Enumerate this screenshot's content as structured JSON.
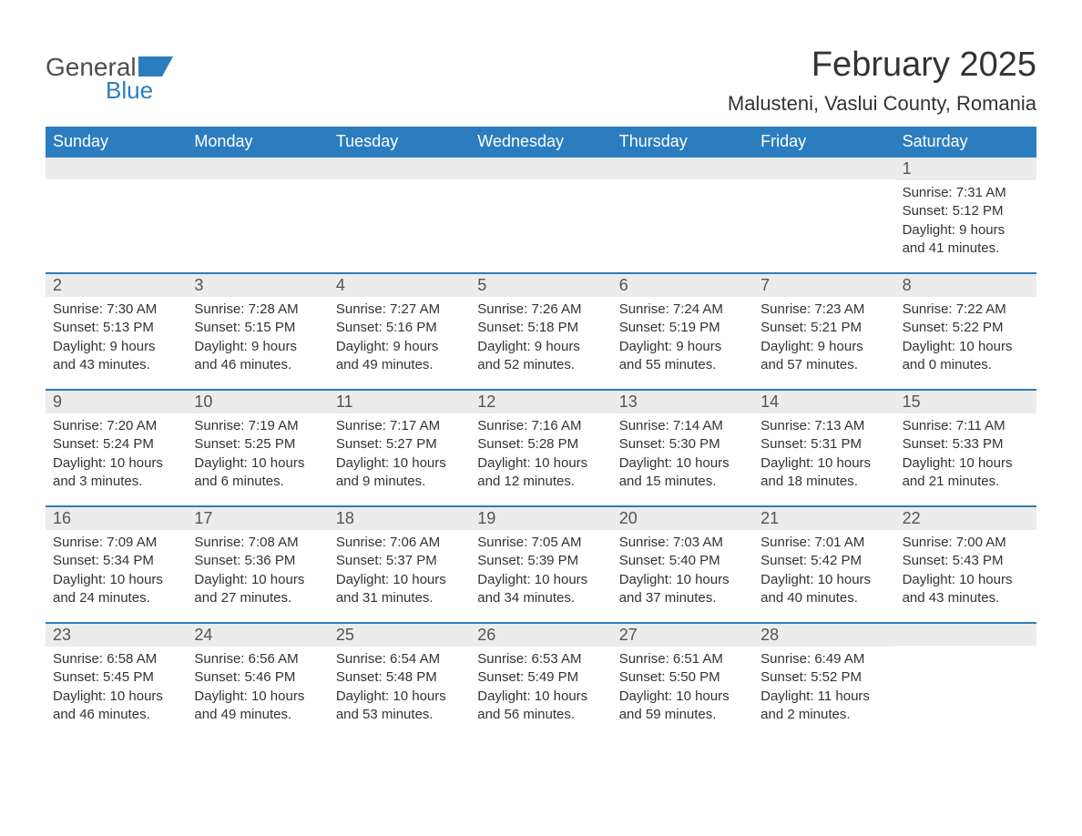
{
  "logo": {
    "text_gray": "General",
    "text_blue": "Blue",
    "icon_color": "#2b7dbf"
  },
  "header": {
    "month_title": "February 2025",
    "location": "Malusteni, Vaslui County, Romania"
  },
  "colors": {
    "header_bg": "#2b7dbf",
    "header_text": "#ffffff",
    "daynum_bg": "#ececec",
    "week_border": "#2b7dbf",
    "body_text": "#333333",
    "logo_gray": "#4d4d4d"
  },
  "weekdays": [
    "Sunday",
    "Monday",
    "Tuesday",
    "Wednesday",
    "Thursday",
    "Friday",
    "Saturday"
  ],
  "weeks": [
    [
      {
        "day": "",
        "sunrise": "",
        "sunset": "",
        "daylight": ""
      },
      {
        "day": "",
        "sunrise": "",
        "sunset": "",
        "daylight": ""
      },
      {
        "day": "",
        "sunrise": "",
        "sunset": "",
        "daylight": ""
      },
      {
        "day": "",
        "sunrise": "",
        "sunset": "",
        "daylight": ""
      },
      {
        "day": "",
        "sunrise": "",
        "sunset": "",
        "daylight": ""
      },
      {
        "day": "",
        "sunrise": "",
        "sunset": "",
        "daylight": ""
      },
      {
        "day": "1",
        "sunrise": "Sunrise: 7:31 AM",
        "sunset": "Sunset: 5:12 PM",
        "daylight": "Daylight: 9 hours and 41 minutes."
      }
    ],
    [
      {
        "day": "2",
        "sunrise": "Sunrise: 7:30 AM",
        "sunset": "Sunset: 5:13 PM",
        "daylight": "Daylight: 9 hours and 43 minutes."
      },
      {
        "day": "3",
        "sunrise": "Sunrise: 7:28 AM",
        "sunset": "Sunset: 5:15 PM",
        "daylight": "Daylight: 9 hours and 46 minutes."
      },
      {
        "day": "4",
        "sunrise": "Sunrise: 7:27 AM",
        "sunset": "Sunset: 5:16 PM",
        "daylight": "Daylight: 9 hours and 49 minutes."
      },
      {
        "day": "5",
        "sunrise": "Sunrise: 7:26 AM",
        "sunset": "Sunset: 5:18 PM",
        "daylight": "Daylight: 9 hours and 52 minutes."
      },
      {
        "day": "6",
        "sunrise": "Sunrise: 7:24 AM",
        "sunset": "Sunset: 5:19 PM",
        "daylight": "Daylight: 9 hours and 55 minutes."
      },
      {
        "day": "7",
        "sunrise": "Sunrise: 7:23 AM",
        "sunset": "Sunset: 5:21 PM",
        "daylight": "Daylight: 9 hours and 57 minutes."
      },
      {
        "day": "8",
        "sunrise": "Sunrise: 7:22 AM",
        "sunset": "Sunset: 5:22 PM",
        "daylight": "Daylight: 10 hours and 0 minutes."
      }
    ],
    [
      {
        "day": "9",
        "sunrise": "Sunrise: 7:20 AM",
        "sunset": "Sunset: 5:24 PM",
        "daylight": "Daylight: 10 hours and 3 minutes."
      },
      {
        "day": "10",
        "sunrise": "Sunrise: 7:19 AM",
        "sunset": "Sunset: 5:25 PM",
        "daylight": "Daylight: 10 hours and 6 minutes."
      },
      {
        "day": "11",
        "sunrise": "Sunrise: 7:17 AM",
        "sunset": "Sunset: 5:27 PM",
        "daylight": "Daylight: 10 hours and 9 minutes."
      },
      {
        "day": "12",
        "sunrise": "Sunrise: 7:16 AM",
        "sunset": "Sunset: 5:28 PM",
        "daylight": "Daylight: 10 hours and 12 minutes."
      },
      {
        "day": "13",
        "sunrise": "Sunrise: 7:14 AM",
        "sunset": "Sunset: 5:30 PM",
        "daylight": "Daylight: 10 hours and 15 minutes."
      },
      {
        "day": "14",
        "sunrise": "Sunrise: 7:13 AM",
        "sunset": "Sunset: 5:31 PM",
        "daylight": "Daylight: 10 hours and 18 minutes."
      },
      {
        "day": "15",
        "sunrise": "Sunrise: 7:11 AM",
        "sunset": "Sunset: 5:33 PM",
        "daylight": "Daylight: 10 hours and 21 minutes."
      }
    ],
    [
      {
        "day": "16",
        "sunrise": "Sunrise: 7:09 AM",
        "sunset": "Sunset: 5:34 PM",
        "daylight": "Daylight: 10 hours and 24 minutes."
      },
      {
        "day": "17",
        "sunrise": "Sunrise: 7:08 AM",
        "sunset": "Sunset: 5:36 PM",
        "daylight": "Daylight: 10 hours and 27 minutes."
      },
      {
        "day": "18",
        "sunrise": "Sunrise: 7:06 AM",
        "sunset": "Sunset: 5:37 PM",
        "daylight": "Daylight: 10 hours and 31 minutes."
      },
      {
        "day": "19",
        "sunrise": "Sunrise: 7:05 AM",
        "sunset": "Sunset: 5:39 PM",
        "daylight": "Daylight: 10 hours and 34 minutes."
      },
      {
        "day": "20",
        "sunrise": "Sunrise: 7:03 AM",
        "sunset": "Sunset: 5:40 PM",
        "daylight": "Daylight: 10 hours and 37 minutes."
      },
      {
        "day": "21",
        "sunrise": "Sunrise: 7:01 AM",
        "sunset": "Sunset: 5:42 PM",
        "daylight": "Daylight: 10 hours and 40 minutes."
      },
      {
        "day": "22",
        "sunrise": "Sunrise: 7:00 AM",
        "sunset": "Sunset: 5:43 PM",
        "daylight": "Daylight: 10 hours and 43 minutes."
      }
    ],
    [
      {
        "day": "23",
        "sunrise": "Sunrise: 6:58 AM",
        "sunset": "Sunset: 5:45 PM",
        "daylight": "Daylight: 10 hours and 46 minutes."
      },
      {
        "day": "24",
        "sunrise": "Sunrise: 6:56 AM",
        "sunset": "Sunset: 5:46 PM",
        "daylight": "Daylight: 10 hours and 49 minutes."
      },
      {
        "day": "25",
        "sunrise": "Sunrise: 6:54 AM",
        "sunset": "Sunset: 5:48 PM",
        "daylight": "Daylight: 10 hours and 53 minutes."
      },
      {
        "day": "26",
        "sunrise": "Sunrise: 6:53 AM",
        "sunset": "Sunset: 5:49 PM",
        "daylight": "Daylight: 10 hours and 56 minutes."
      },
      {
        "day": "27",
        "sunrise": "Sunrise: 6:51 AM",
        "sunset": "Sunset: 5:50 PM",
        "daylight": "Daylight: 10 hours and 59 minutes."
      },
      {
        "day": "28",
        "sunrise": "Sunrise: 6:49 AM",
        "sunset": "Sunset: 5:52 PM",
        "daylight": "Daylight: 11 hours and 2 minutes."
      },
      {
        "day": "",
        "sunrise": "",
        "sunset": "",
        "daylight": ""
      }
    ]
  ]
}
